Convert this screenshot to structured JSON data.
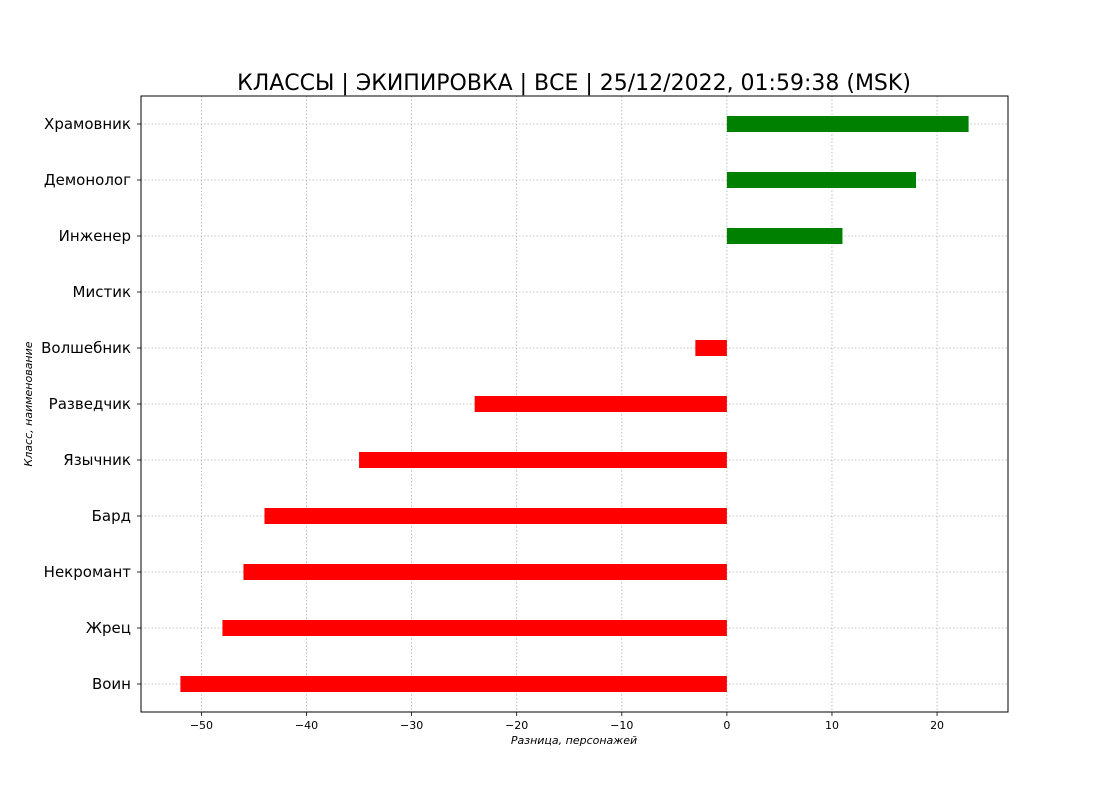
{
  "chart_data": {
    "type": "bar",
    "orientation": "horizontal",
    "title": "КЛАССЫ | ЭКИПИРОВКА | ВСЕ | 25/12/2022, 01:59:38 (MSK)",
    "xlabel": "Разница, персонажей",
    "ylabel": "Класс, наименование",
    "categories": [
      "Воин",
      "Жрец",
      "Некромант",
      "Бард",
      "Язычник",
      "Разведчик",
      "Волшебник",
      "Мистик",
      "Инженер",
      "Демонолог",
      "Храмовник"
    ],
    "values": [
      -52,
      -48,
      -46,
      -44,
      -35,
      -24,
      -3,
      0,
      11,
      18,
      23
    ],
    "xlim": [
      -55.75,
      26.75
    ],
    "xticks": [
      -50,
      -40,
      -30,
      -20,
      -10,
      0,
      10,
      20
    ],
    "xtick_labels": [
      "−50",
      "−40",
      "−30",
      "−20",
      "−10",
      "0",
      "10",
      "20"
    ],
    "grid": true,
    "colors": {
      "positive": "#008000",
      "negative": "#ff0000",
      "grid": "#b0b0b0",
      "axes": "#000000",
      "background": "#ffffff"
    }
  }
}
